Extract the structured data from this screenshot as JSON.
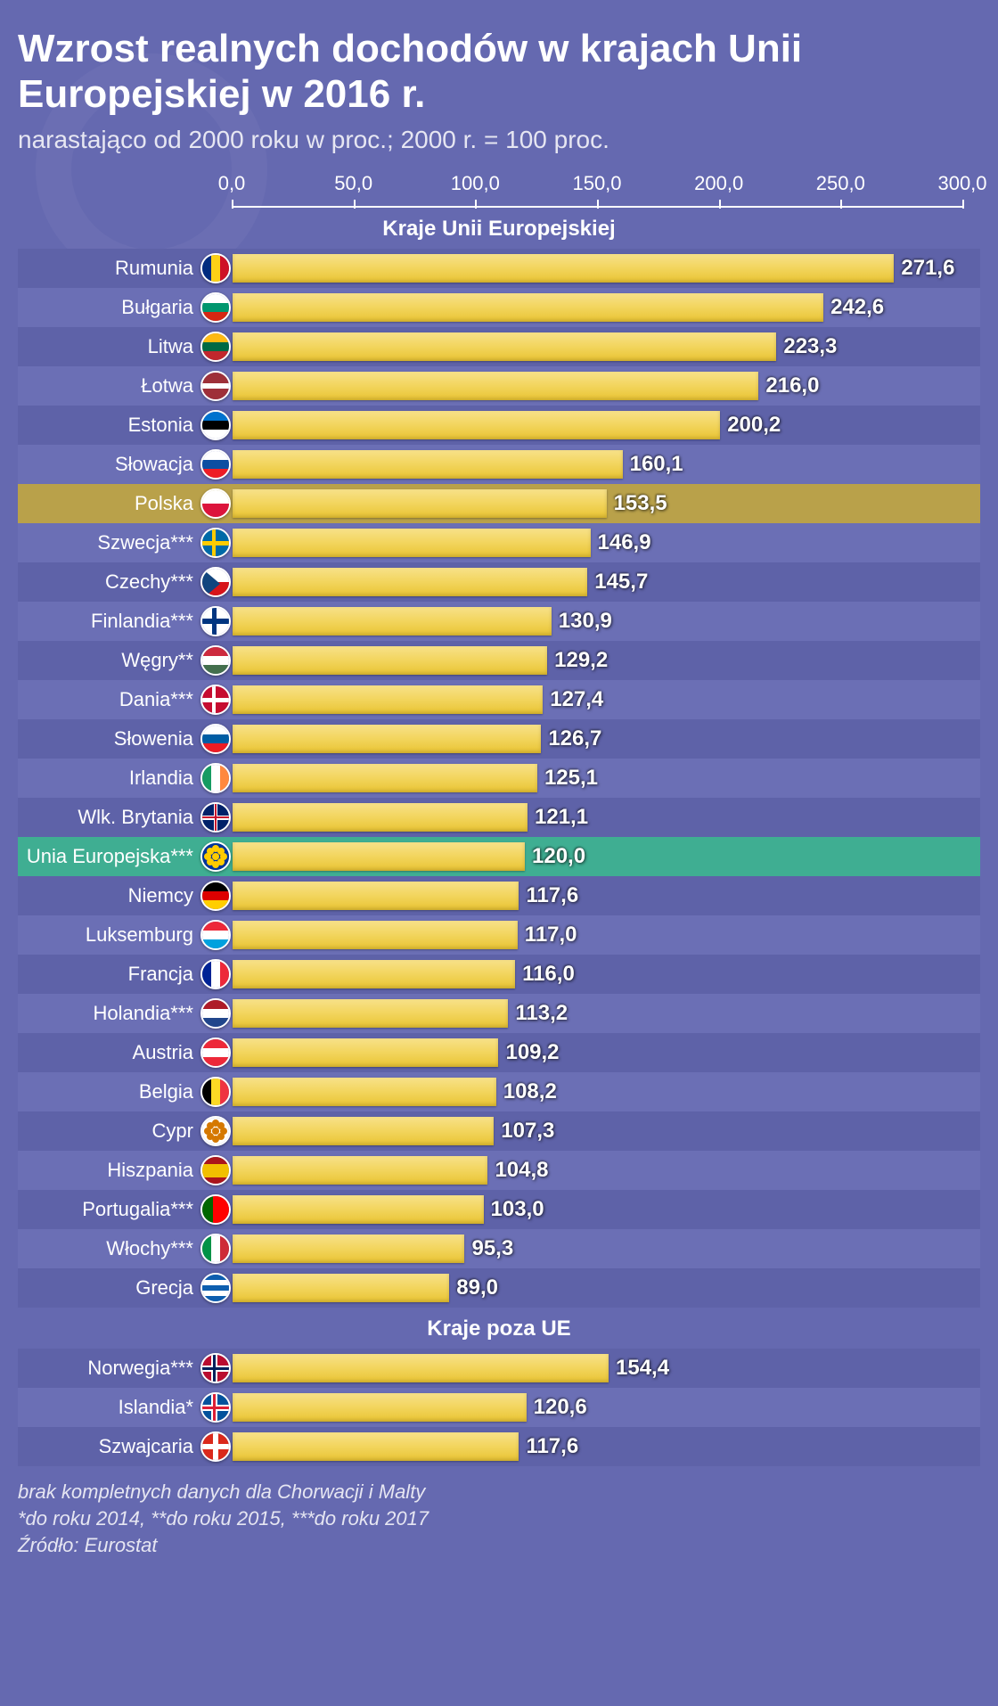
{
  "title": "Wzrost realnych dochodów w krajach Unii Europejskiej w 2016 r.",
  "subtitle": "narastająco od 2000 roku w proc.; 2000 r. = 100 proc.",
  "chart": {
    "type": "bar",
    "xmin": 0,
    "xmax": 300,
    "xtick_step": 50,
    "tick_labels": [
      "0,0",
      "50,0",
      "100,0",
      "150,0",
      "200,0",
      "250,0",
      "300,0"
    ],
    "bar_gradient": [
      "#f7e189",
      "#f3d661",
      "#e9c433"
    ],
    "background_color": "#6569b0",
    "row_stripe_colors": [
      "#5e62a8",
      "#6b6fb5"
    ],
    "highlight_gold": "#b9a14a",
    "highlight_teal": "#3fae92",
    "value_color": "#ffffff",
    "label_color": "#ffffff",
    "title_fontsize": 44,
    "subtitle_fontsize": 28,
    "label_fontsize": 22,
    "value_fontsize": 24
  },
  "section1_header": "Kraje Unii Europejskiej",
  "section2_header": "Kraje poza UE",
  "rows_eu": [
    {
      "label": "Rumunia",
      "value": 271.6,
      "value_label": "271,6",
      "flag": "ro"
    },
    {
      "label": "Bułgaria",
      "value": 242.6,
      "value_label": "242,6",
      "flag": "bg"
    },
    {
      "label": "Litwa",
      "value": 223.3,
      "value_label": "223,3",
      "flag": "lt"
    },
    {
      "label": "Łotwa",
      "value": 216.0,
      "value_label": "216,0",
      "flag": "lv"
    },
    {
      "label": "Estonia",
      "value": 200.2,
      "value_label": "200,2",
      "flag": "ee"
    },
    {
      "label": "Słowacja",
      "value": 160.1,
      "value_label": "160,1",
      "flag": "sk"
    },
    {
      "label": "Polska",
      "value": 153.5,
      "value_label": "153,5",
      "flag": "pl",
      "highlight": "gold"
    },
    {
      "label": "Szwecja***",
      "value": 146.9,
      "value_label": "146,9",
      "flag": "se"
    },
    {
      "label": "Czechy***",
      "value": 145.7,
      "value_label": "145,7",
      "flag": "cz"
    },
    {
      "label": "Finlandia***",
      "value": 130.9,
      "value_label": "130,9",
      "flag": "fi"
    },
    {
      "label": "Węgry**",
      "value": 129.2,
      "value_label": "129,2",
      "flag": "hu"
    },
    {
      "label": "Dania***",
      "value": 127.4,
      "value_label": "127,4",
      "flag": "dk"
    },
    {
      "label": "Słowenia",
      "value": 126.7,
      "value_label": "126,7",
      "flag": "si"
    },
    {
      "label": "Irlandia",
      "value": 125.1,
      "value_label": "125,1",
      "flag": "ie"
    },
    {
      "label": "Wlk. Brytania",
      "value": 121.1,
      "value_label": "121,1",
      "flag": "gb"
    },
    {
      "label": "Unia Europejska***",
      "value": 120.0,
      "value_label": "120,0",
      "flag": "eu",
      "highlight": "teal"
    },
    {
      "label": "Niemcy",
      "value": 117.6,
      "value_label": "117,6",
      "flag": "de"
    },
    {
      "label": "Luksemburg",
      "value": 117.0,
      "value_label": "117,0",
      "flag": "lu"
    },
    {
      "label": "Francja",
      "value": 116.0,
      "value_label": "116,0",
      "flag": "fr"
    },
    {
      "label": "Holandia***",
      "value": 113.2,
      "value_label": "113,2",
      "flag": "nl"
    },
    {
      "label": "Austria",
      "value": 109.2,
      "value_label": "109,2",
      "flag": "at"
    },
    {
      "label": "Belgia",
      "value": 108.2,
      "value_label": "108,2",
      "flag": "be"
    },
    {
      "label": "Cypr",
      "value": 107.3,
      "value_label": "107,3",
      "flag": "cy"
    },
    {
      "label": "Hiszpania",
      "value": 104.8,
      "value_label": "104,8",
      "flag": "es"
    },
    {
      "label": "Portugalia***",
      "value": 103.0,
      "value_label": "103,0",
      "flag": "pt"
    },
    {
      "label": "Włochy***",
      "value": 95.3,
      "value_label": "95,3",
      "flag": "it"
    },
    {
      "label": "Grecja",
      "value": 89.0,
      "value_label": "89,0",
      "flag": "gr"
    }
  ],
  "rows_non_eu": [
    {
      "label": "Norwegia***",
      "value": 154.4,
      "value_label": "154,4",
      "flag": "no"
    },
    {
      "label": "Islandia*",
      "value": 120.6,
      "value_label": "120,6",
      "flag": "is"
    },
    {
      "label": "Szwajcaria",
      "value": 117.6,
      "value_label": "117,6",
      "flag": "ch"
    }
  ],
  "footer_lines": [
    "brak kompletnych danych dla Chorwacji i Malty",
    "*do roku 2014, **do roku 2015, ***do roku 2017",
    "Źródło: Eurostat"
  ],
  "flags": {
    "ro": [
      [
        "v",
        "#002b7f",
        0,
        33
      ],
      [
        "v",
        "#fcd116",
        33,
        67
      ],
      [
        "v",
        "#ce1126",
        67,
        100
      ]
    ],
    "bg": [
      [
        "h",
        "#ffffff",
        0,
        33
      ],
      [
        "h",
        "#00966e",
        33,
        67
      ],
      [
        "h",
        "#d62612",
        67,
        100
      ]
    ],
    "lt": [
      [
        "h",
        "#fdb913",
        0,
        33
      ],
      [
        "h",
        "#006a44",
        33,
        67
      ],
      [
        "h",
        "#c1272d",
        67,
        100
      ]
    ],
    "lv": [
      [
        "h",
        "#9e3039",
        0,
        40
      ],
      [
        "h",
        "#ffffff",
        40,
        60
      ],
      [
        "h",
        "#9e3039",
        60,
        100
      ]
    ],
    "ee": [
      [
        "h",
        "#0072ce",
        0,
        33
      ],
      [
        "h",
        "#000000",
        33,
        67
      ],
      [
        "h",
        "#ffffff",
        67,
        100
      ]
    ],
    "sk": [
      [
        "h",
        "#ffffff",
        0,
        33
      ],
      [
        "h",
        "#0b4ea2",
        33,
        67
      ],
      [
        "h",
        "#ee1c25",
        67,
        100
      ]
    ],
    "pl": [
      [
        "h",
        "#ffffff",
        0,
        50
      ],
      [
        "h",
        "#dc143c",
        50,
        100
      ]
    ],
    "se": [
      [
        "bg",
        "#006aa7"
      ],
      [
        "cv",
        "#fecc00",
        38,
        50
      ],
      [
        "ch",
        "#fecc00",
        42,
        58
      ]
    ],
    "cz": [
      [
        "h",
        "#ffffff",
        0,
        50
      ],
      [
        "h",
        "#d7141a",
        50,
        100
      ],
      [
        "tri",
        "#11457e"
      ]
    ],
    "fi": [
      [
        "bg",
        "#ffffff"
      ],
      [
        "cv",
        "#003580",
        36,
        52
      ],
      [
        "ch",
        "#003580",
        40,
        60
      ]
    ],
    "hu": [
      [
        "h",
        "#cd2a3e",
        0,
        33
      ],
      [
        "h",
        "#ffffff",
        33,
        67
      ],
      [
        "h",
        "#436f4d",
        67,
        100
      ]
    ],
    "dk": [
      [
        "bg",
        "#c60c30"
      ],
      [
        "cv",
        "#ffffff",
        38,
        50
      ],
      [
        "ch",
        "#ffffff",
        42,
        58
      ]
    ],
    "si": [
      [
        "h",
        "#ffffff",
        0,
        33
      ],
      [
        "h",
        "#005da4",
        33,
        67
      ],
      [
        "h",
        "#ed1c24",
        67,
        100
      ]
    ],
    "ie": [
      [
        "v",
        "#169b62",
        0,
        33
      ],
      [
        "v",
        "#ffffff",
        33,
        67
      ],
      [
        "v",
        "#ff883e",
        67,
        100
      ]
    ],
    "gb": [
      [
        "bg",
        "#012169"
      ],
      [
        "cv",
        "#ffffff",
        42,
        58
      ],
      [
        "ch",
        "#ffffff",
        42,
        58
      ],
      [
        "cv",
        "#c8102e",
        46,
        54
      ],
      [
        "ch",
        "#c8102e",
        46,
        54
      ]
    ],
    "eu": [
      [
        "bg",
        "#003399"
      ],
      [
        "dot",
        "#ffcc00"
      ]
    ],
    "de": [
      [
        "h",
        "#000000",
        0,
        33
      ],
      [
        "h",
        "#dd0000",
        33,
        67
      ],
      [
        "h",
        "#ffce00",
        67,
        100
      ]
    ],
    "lu": [
      [
        "h",
        "#ed2939",
        0,
        33
      ],
      [
        "h",
        "#ffffff",
        33,
        67
      ],
      [
        "h",
        "#00a1de",
        67,
        100
      ]
    ],
    "fr": [
      [
        "v",
        "#002395",
        0,
        33
      ],
      [
        "v",
        "#ffffff",
        33,
        67
      ],
      [
        "v",
        "#ed2939",
        67,
        100
      ]
    ],
    "nl": [
      [
        "h",
        "#ae1c28",
        0,
        33
      ],
      [
        "h",
        "#ffffff",
        33,
        67
      ],
      [
        "h",
        "#21468b",
        67,
        100
      ]
    ],
    "at": [
      [
        "h",
        "#ed2939",
        0,
        33
      ],
      [
        "h",
        "#ffffff",
        33,
        67
      ],
      [
        "h",
        "#ed2939",
        67,
        100
      ]
    ],
    "be": [
      [
        "v",
        "#000000",
        0,
        33
      ],
      [
        "v",
        "#fdda24",
        33,
        67
      ],
      [
        "v",
        "#ef3340",
        67,
        100
      ]
    ],
    "cy": [
      [
        "bg",
        "#ffffff"
      ],
      [
        "dot",
        "#d57800"
      ]
    ],
    "es": [
      [
        "h",
        "#aa151b",
        0,
        25
      ],
      [
        "h",
        "#f1bf00",
        25,
        75
      ],
      [
        "h",
        "#aa151b",
        75,
        100
      ]
    ],
    "pt": [
      [
        "v",
        "#006600",
        0,
        40
      ],
      [
        "v",
        "#ff0000",
        40,
        100
      ]
    ],
    "it": [
      [
        "v",
        "#009246",
        0,
        33
      ],
      [
        "v",
        "#ffffff",
        33,
        67
      ],
      [
        "v",
        "#ce2b37",
        67,
        100
      ]
    ],
    "gr": [
      [
        "h",
        "#0d5eaf",
        0,
        20
      ],
      [
        "h",
        "#ffffff",
        20,
        40
      ],
      [
        "h",
        "#0d5eaf",
        40,
        60
      ],
      [
        "h",
        "#ffffff",
        60,
        80
      ],
      [
        "h",
        "#0d5eaf",
        80,
        100
      ]
    ],
    "no": [
      [
        "bg",
        "#ba0c2f"
      ],
      [
        "cv",
        "#ffffff",
        34,
        56
      ],
      [
        "ch",
        "#ffffff",
        38,
        62
      ],
      [
        "cv",
        "#00205b",
        40,
        50
      ],
      [
        "ch",
        "#00205b",
        45,
        55
      ]
    ],
    "is": [
      [
        "bg",
        "#02529c"
      ],
      [
        "cv",
        "#ffffff",
        34,
        56
      ],
      [
        "ch",
        "#ffffff",
        38,
        62
      ],
      [
        "cv",
        "#dc1e35",
        40,
        50
      ],
      [
        "ch",
        "#dc1e35",
        45,
        55
      ]
    ],
    "ch": [
      [
        "bg",
        "#da291c"
      ],
      [
        "cv",
        "#ffffff",
        40,
        60
      ],
      [
        "ch",
        "#ffffff",
        40,
        60
      ]
    ]
  }
}
